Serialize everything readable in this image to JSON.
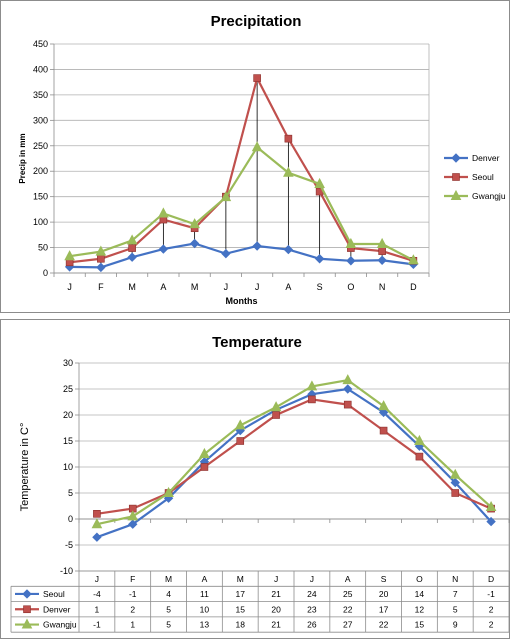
{
  "chart_data": [
    {
      "type": "line",
      "title": "Precipitation",
      "xlabel": "Months",
      "ylabel": "Precip in mm",
      "ylim": [
        0,
        450
      ],
      "ytick_step": 50,
      "grid": true,
      "legend_position": "right",
      "categories": [
        "J",
        "F",
        "M",
        "A",
        "M",
        "J",
        "J",
        "A",
        "S",
        "O",
        "N",
        "D"
      ],
      "series": [
        {
          "name": "Denver",
          "color": "#4472c4",
          "marker": "diamond",
          "values": [
            12,
            11,
            31,
            47,
            58,
            38,
            53,
            46,
            28,
            24,
            25,
            17
          ]
        },
        {
          "name": "Seoul",
          "color": "#c0504d",
          "marker": "square",
          "values": [
            21,
            28,
            49,
            105,
            88,
            150,
            383,
            264,
            160,
            49,
            43,
            24
          ]
        },
        {
          "name": "Gwangju",
          "color": "#9bbb59",
          "marker": "triangle",
          "values": [
            33,
            42,
            64,
            117,
            96,
            149,
            247,
            197,
            175,
            57,
            57,
            25
          ]
        }
      ],
      "drop_lines": true
    },
    {
      "type": "line",
      "title": "Temperature",
      "xlabel": "",
      "ylabel": "Temperature in C°",
      "ylim": [
        -10,
        30
      ],
      "ytick_step": 5,
      "grid": true,
      "legend_position": "data-table",
      "categories": [
        "J",
        "F",
        "M",
        "A",
        "M",
        "J",
        "J",
        "A",
        "S",
        "O",
        "N",
        "D"
      ],
      "series": [
        {
          "name": "Seoul",
          "color": "#4472c4",
          "marker": "diamond",
          "values": [
            -3.5,
            -1,
            4,
            11,
            17,
            21,
            24,
            25,
            20.5,
            14,
            7,
            -0.5
          ],
          "table_values": [
            "-4",
            "-1",
            "4",
            "11",
            "17",
            "21",
            "24",
            "25",
            "20",
            "14",
            "7",
            "-1"
          ]
        },
        {
          "name": "Denver",
          "color": "#c0504d",
          "marker": "square",
          "values": [
            1,
            2,
            5,
            10,
            15,
            20,
            23,
            22,
            17,
            12,
            5,
            2
          ],
          "table_values": [
            "1",
            "2",
            "5",
            "10",
            "15",
            "20",
            "23",
            "22",
            "17",
            "12",
            "5",
            "2"
          ]
        },
        {
          "name": "Gwangju",
          "color": "#9bbb59",
          "marker": "triangle",
          "values": [
            -1,
            0.5,
            5,
            12.5,
            18,
            21.5,
            25.5,
            26.7,
            21.7,
            15,
            8.5,
            2.3
          ],
          "table_values": [
            "-1",
            "1",
            "5",
            "13",
            "18",
            "21",
            "26",
            "27",
            "22",
            "15",
            "9",
            "2"
          ]
        }
      ]
    }
  ]
}
